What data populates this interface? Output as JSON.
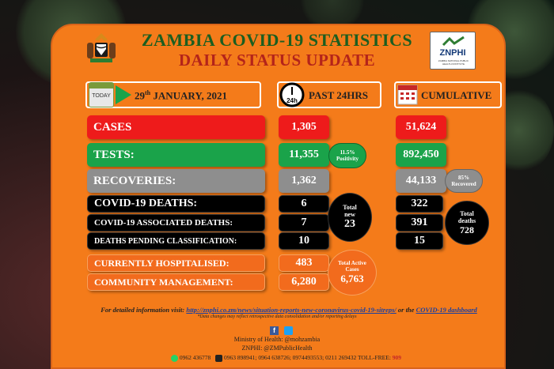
{
  "header": {
    "title": "ZAMBIA COVID-19 STATISTICS",
    "subtitle": "DAILY STATUS UPDATE",
    "logo_left": "coat-of-arms",
    "logo_right_text": "ZNPHI",
    "logo_right_sub": "ZAMBIA NATIONAL PUBLIC HEALTH INSTITUTE"
  },
  "date_banner": {
    "icon_text": "TODAY",
    "day": "29",
    "day_suffix": "th",
    "rest": " JANUARY, 2021"
  },
  "past_banner": {
    "icon_text": "24h",
    "label": "PAST 24HRS"
  },
  "cum_banner": {
    "label": "CUMULATIVE"
  },
  "rows": {
    "cases": {
      "label": "CASES",
      "past": "1,305",
      "cum": "51,624"
    },
    "tests": {
      "label": "TESTS:",
      "past": "11,355",
      "cum": "892,450"
    },
    "recoveries": {
      "label": "RECOVERIES:",
      "past": "1,362",
      "cum": "44,133"
    },
    "deaths": {
      "label": "COVID-19 DEATHS:",
      "past": "6",
      "cum": "322"
    },
    "assoc": {
      "label": "COVID-19 ASSOCIATED DEATHS:",
      "past": "7",
      "cum": "391"
    },
    "pending": {
      "label": "DEATHS PENDING CLASSIFICATION:",
      "past": "10",
      "cum": "15"
    },
    "hosp": {
      "label": "CURRENTLY HOSPITALISED:",
      "past": "483"
    },
    "community": {
      "label": "COMMUNITY MANAGEMENT:",
      "past": "6,280"
    }
  },
  "bubbles": {
    "positivity": {
      "value": "11.5%",
      "label": "Positivity"
    },
    "recovered": {
      "value": "85%",
      "label": "Recovered"
    },
    "total_new": {
      "label1": "Total",
      "label2": "new",
      "value": "23"
    },
    "total_deaths": {
      "label1": "Total",
      "label2": "deaths",
      "value": "728"
    },
    "active": {
      "label1": "Total Active",
      "label2": "Cases",
      "value": "6,763"
    }
  },
  "footer": {
    "info_prefix": "For detailed information visit: ",
    "info_link": "http://znphi.co.zm/news/situation-reports-new-coronavirus-covid-19-sitreps/",
    "info_mid": " or the ",
    "info_dash": "COVID-19 dashboard",
    "note": "*Data changes may reflect retrospective data consolidation and/or reporting delays",
    "social_icons": [
      "facebook-icon",
      "twitter-icon"
    ],
    "ministry": "Ministry of Health: @mohzambia",
    "znphi": "ZNPHI: @ZMPublicHealth",
    "phones": "0962 436778",
    "phones2": "0963 898941; 0964 638726; 0974493553; 0211 269432 TOLL-FREE: ",
    "tollfree": "909"
  },
  "colors": {
    "panel": "#f47b1a",
    "cases": "#ee1b1b",
    "tests": "#1aa34a",
    "recoveries": "#8e8e8e",
    "deaths": "#000000",
    "title_green": "#1b5e20",
    "title_red": "#b4241a"
  }
}
